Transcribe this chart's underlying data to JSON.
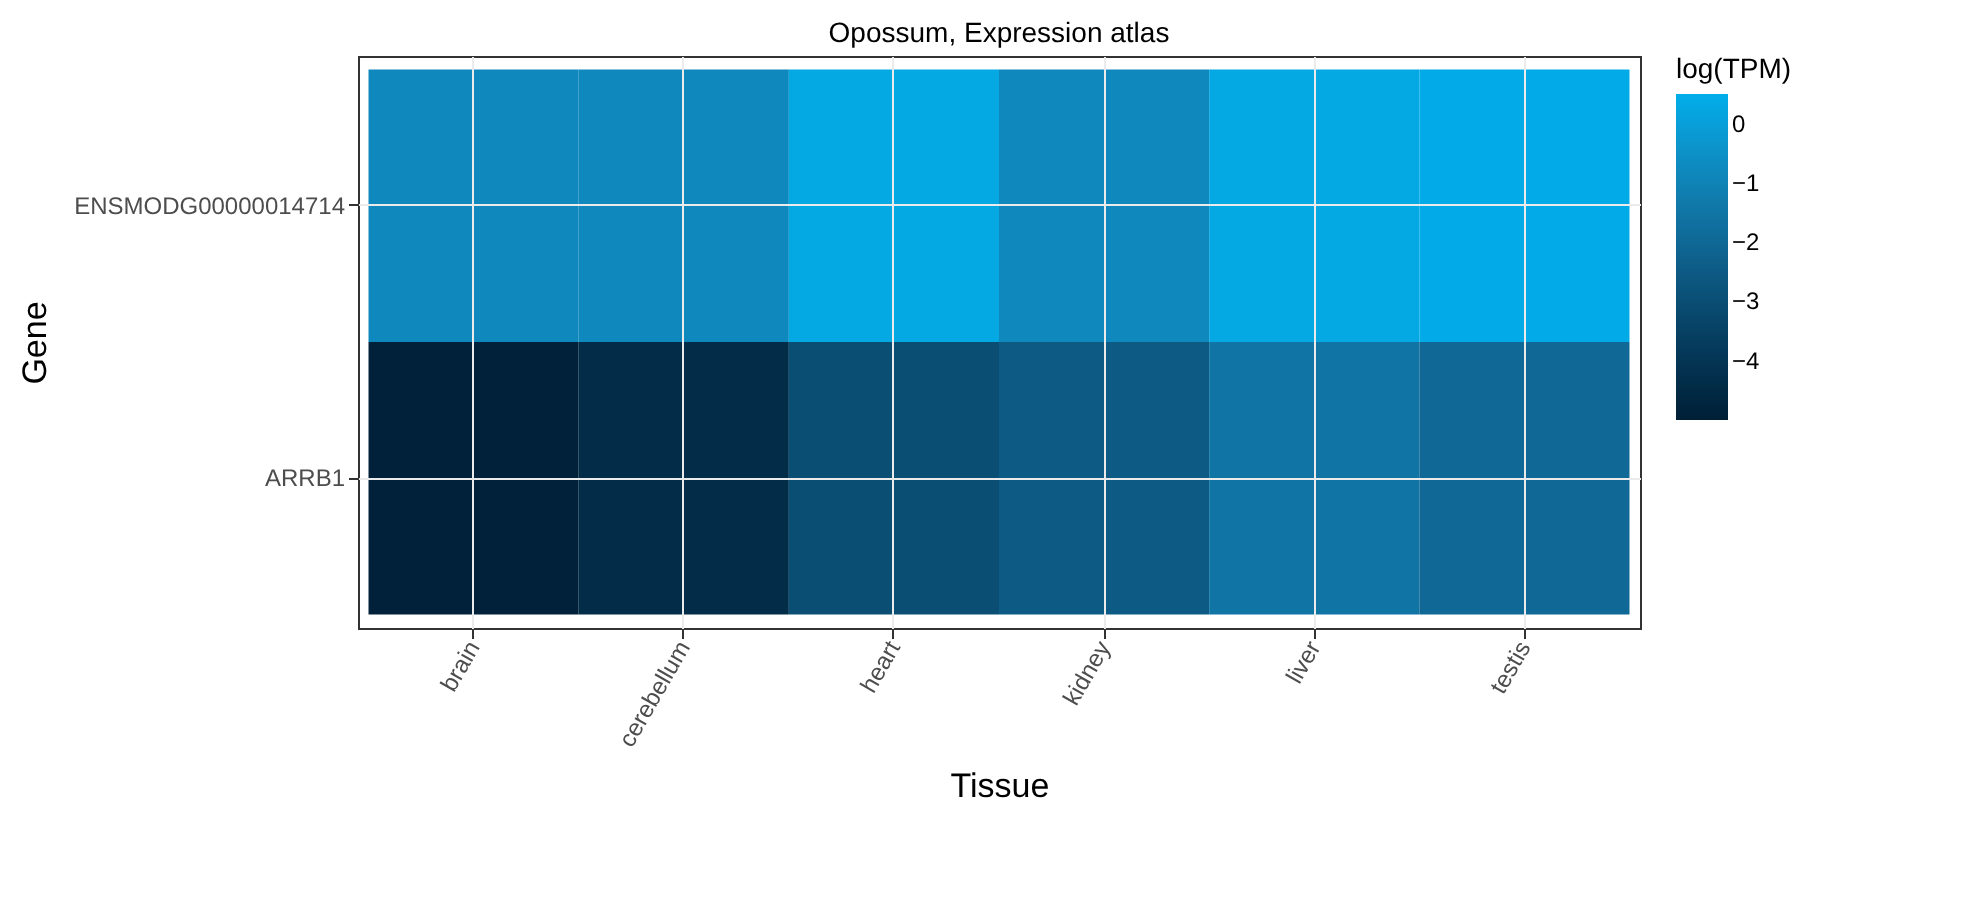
{
  "chart_data": {
    "type": "heatmap",
    "title": "Opossum, Expression atlas",
    "xlabel": "Tissue",
    "ylabel": "Gene",
    "clabel": "log(TPM)",
    "categories": [
      "brain",
      "cerebellum",
      "heart",
      "kidney",
      "liver",
      "testis"
    ],
    "y_categories": [
      "ENSMODG00000014714",
      "ARRB1"
    ],
    "cells": [
      [
        -0.8,
        -0.8,
        0.3,
        -0.8,
        0.3,
        0.4
      ],
      [
        -4.9,
        -4.4,
        -3.0,
        -2.5,
        -1.5,
        -2.0
      ]
    ],
    "clim": [
      -5,
      0.5
    ],
    "cticks": [
      0,
      -1,
      -2,
      -3,
      -4
    ],
    "grid": true
  }
}
